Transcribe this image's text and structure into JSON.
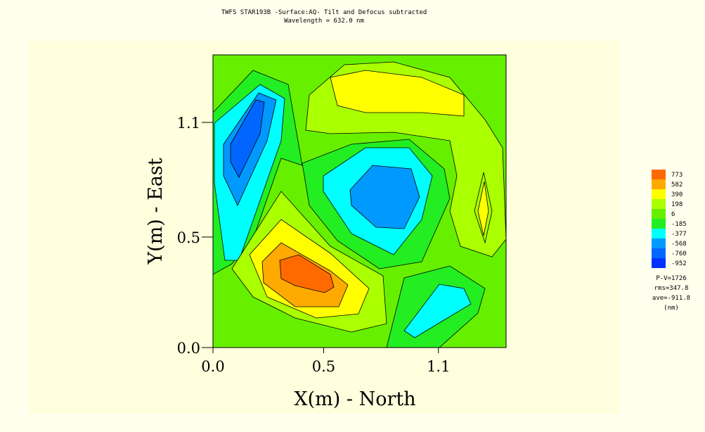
{
  "chart_data": {
    "type": "contour",
    "title": "TWFS STAR193B -Surface:AQ- Tilt and Defocus subtracted",
    "subtitle": "Wavelength = 632.0 nm",
    "x_label": "X(m) -  North",
    "y_label": "Y(m) -  East",
    "xlim": [
      0,
      1.43
    ],
    "ylim": [
      0,
      1.43
    ],
    "xticks": [
      {
        "value": 0,
        "label": "0.0"
      },
      {
        "value": 0.54,
        "label": "0.5"
      },
      1.1
    ],
    "yticks": [
      {
        "value": 0,
        "label": "0.0"
      },
      {
        "value": 0.54,
        "label": "0.5"
      },
      1.1
    ],
    "levels": [
      773,
      582,
      390,
      198,
      6,
      -185,
      -377,
      -568,
      -760,
      -952
    ],
    "colors": [
      "#ff6a00",
      "#ffaa00",
      "#ffff00",
      "#aaff00",
      "#66f000",
      "#22ee22",
      "#00ffff",
      "#0099ff",
      "#0066ff",
      "#0033ff"
    ],
    "stats": [
      "P-V=1726",
      "rms=347.8",
      "ave=-911.8",
      "(nm)"
    ]
  }
}
